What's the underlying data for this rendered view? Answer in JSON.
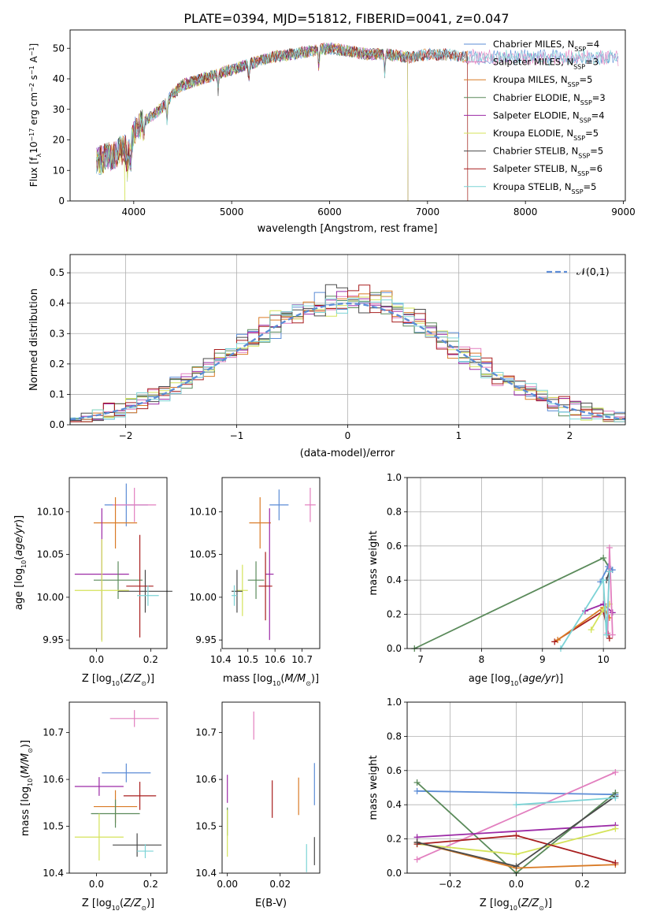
{
  "figure_title": "PLATE=0394, MJD=51812, FIBERID=0041, z=0.047",
  "colors": {
    "Chabrier MILES": "#5b8cd6",
    "Salpeter MILES": "#e27fbf",
    "Kroupa MILES": "#d97b26",
    "Chabrier ELODIE": "#5a8a5a",
    "Salpeter ELODIE": "#9c2aa6",
    "Kroupa ELODIE": "#d4e35a",
    "Chabrier STELIB": "#4a4a4a",
    "Salpeter STELIB": "#a81e1e",
    "Kroupa STELIB": "#7cd3d6"
  },
  "chart_data": [
    {
      "id": "spectrum",
      "type": "line",
      "xlabel": "wavelength [Angstrom, rest frame]",
      "ylabel": "Flux [f_λ 10^-17 erg cm^-2 s^-1 A^-1]",
      "xlim": [
        3350,
        9020
      ],
      "ylim": [
        0,
        56
      ],
      "xticks": [
        4000,
        5000,
        6000,
        7000,
        8000,
        9000
      ],
      "yticks": [
        0,
        10,
        20,
        30,
        40,
        50
      ],
      "grid": false,
      "legend": "top-right",
      "continuum": {
        "x": [
          3620,
          3700,
          3800,
          3900,
          3950,
          4000,
          4100,
          4200,
          4300,
          4400,
          4500,
          4600,
          4800,
          5000,
          5200,
          5400,
          5600,
          5800,
          6000,
          6200,
          6400,
          6600,
          6800,
          7000,
          7200,
          7400
        ],
        "y": [
          13,
          14,
          15,
          17,
          16,
          22,
          26,
          28,
          31,
          35,
          38,
          39,
          41,
          43,
          45,
          47,
          48,
          49,
          50,
          49,
          48,
          48,
          47,
          48,
          48,
          47
        ]
      },
      "series": [
        {
          "name": "Chabrier MILES",
          "nssp": "4",
          "end": 8950
        },
        {
          "name": "Salpeter MILES",
          "nssp": "3",
          "end": 8950
        },
        {
          "name": "Kroupa MILES",
          "nssp": "5",
          "end": 7410
        },
        {
          "name": "Chabrier ELODIE",
          "nssp": "3",
          "end": 6800
        },
        {
          "name": "Salpeter ELODIE",
          "nssp": "4",
          "end": 6800
        },
        {
          "name": "Kroupa ELODIE",
          "nssp": "5",
          "end": 6800
        },
        {
          "name": "Chabrier STELIB",
          "nssp": "5",
          "end": 7410
        },
        {
          "name": "Salpeter STELIB",
          "nssp": "6",
          "end": 7410
        },
        {
          "name": "Kroupa STELIB",
          "nssp": "5",
          "end": 8950
        }
      ]
    },
    {
      "id": "residuals",
      "type": "histogram",
      "xlabel": "(data-model)/error",
      "ylabel": "Normed distribution",
      "xlim": [
        -2.5,
        2.5
      ],
      "ylim": [
        0,
        0.56
      ],
      "xticks": [
        -2,
        -1,
        0,
        1,
        2
      ],
      "yticks": [
        0.0,
        0.1,
        0.2,
        0.3,
        0.4,
        0.5
      ],
      "grid": true,
      "legend": "top-right",
      "reference_label": "𝒩(0,1)",
      "bin_width": 0.1
    },
    {
      "id": "age-vs-Z",
      "type": "errorbar",
      "xlabel": "Z [log10(Z/Z⊙)]",
      "ylabel": "age [log10(age/yr)]",
      "xlim": [
        -0.1,
        0.26
      ],
      "ylim": [
        9.94,
        10.14
      ],
      "xticks": [
        0.0,
        0.2
      ],
      "yticks": [
        9.95,
        10.0,
        10.05,
        10.1
      ],
      "points": [
        {
          "series": "Chabrier MILES",
          "x": 0.11,
          "xerr": 0.08,
          "y": 10.108,
          "yerr": 0.025
        },
        {
          "series": "Salpeter MILES",
          "x": 0.14,
          "xerr": 0.08,
          "y": 10.108,
          "yerr": 0.02
        },
        {
          "series": "Kroupa MILES",
          "x": 0.07,
          "xerr": 0.08,
          "y": 10.087,
          "yerr": 0.03
        },
        {
          "series": "Salpeter ELODIE",
          "x": 0.02,
          "xerr": 0.1,
          "y": 10.027,
          "yerr": 0.077
        },
        {
          "series": "Chabrier ELODIE",
          "x": 0.08,
          "xerr": 0.09,
          "y": 10.02,
          "yerr": 0.022
        },
        {
          "series": "Kroupa ELODIE",
          "x": 0.02,
          "xerr": 0.1,
          "y": 10.008,
          "yerr": 0.06
        },
        {
          "series": "Chabrier STELIB",
          "x": 0.18,
          "xerr": 0.1,
          "y": 10.007,
          "yerr": 0.025
        },
        {
          "series": "Salpeter STELIB",
          "x": 0.16,
          "xerr": 0.05,
          "y": 10.013,
          "yerr": 0.06
        },
        {
          "series": "Kroupa STELIB",
          "x": 0.19,
          "xerr": 0.04,
          "y": 10.002,
          "yerr": 0.012
        }
      ]
    },
    {
      "id": "age-vs-mass",
      "type": "errorbar",
      "xlabel": "mass [log10(M/M⊙)]",
      "ylabel": "",
      "xlim": [
        10.405,
        10.765
      ],
      "ylim": [
        9.94,
        10.14
      ],
      "xticks": [
        10.4,
        10.5,
        10.6,
        10.7
      ],
      "yticks": [
        9.95,
        10.0,
        10.05,
        10.1
      ],
      "points": [
        {
          "series": "Chabrier MILES",
          "x": 10.615,
          "xerr": 0.035,
          "y": 10.108,
          "yerr": 0.018
        },
        {
          "series": "Salpeter MILES",
          "x": 10.73,
          "xerr": 0.02,
          "y": 10.108,
          "yerr": 0.02
        },
        {
          "series": "Kroupa MILES",
          "x": 10.545,
          "xerr": 0.04,
          "y": 10.087,
          "yerr": 0.03
        },
        {
          "series": "Salpeter ELODIE",
          "x": 10.58,
          "xerr": 0.015,
          "y": 10.027,
          "yerr": 0.077
        },
        {
          "series": "Chabrier ELODIE",
          "x": 10.53,
          "xerr": 0.03,
          "y": 10.02,
          "yerr": 0.022
        },
        {
          "series": "Kroupa ELODIE",
          "x": 10.48,
          "xerr": 0.02,
          "y": 10.008,
          "yerr": 0.03
        },
        {
          "series": "Chabrier STELIB",
          "x": 10.46,
          "xerr": 0.02,
          "y": 10.007,
          "yerr": 0.025
        },
        {
          "series": "Salpeter STELIB",
          "x": 10.565,
          "xerr": 0.025,
          "y": 10.013,
          "yerr": 0.04
        },
        {
          "series": "Kroupa STELIB",
          "x": 10.45,
          "xerr": 0.01,
          "y": 10.002,
          "yerr": 0.012
        }
      ]
    },
    {
      "id": "weight-vs-age",
      "type": "line",
      "xlabel": "age [log10(age/yr)]",
      "ylabel": "mass weight",
      "xlim": [
        6.78,
        10.36
      ],
      "ylim": [
        0.0,
        1.0
      ],
      "xticks": [
        7,
        8,
        9,
        10
      ],
      "yticks": [
        0.0,
        0.2,
        0.4,
        0.6,
        0.8,
        1.0
      ],
      "grid": true,
      "lines": [
        {
          "series": "Chabrier ELODIE",
          "x": [
            6.9,
            10.0,
            10.1
          ],
          "y": [
            0.0,
            0.53,
            0.47
          ]
        },
        {
          "series": "Salpeter STELIB",
          "x": [
            9.2,
            10.0,
            10.1
          ],
          "y": [
            0.04,
            0.22,
            0.06
          ]
        },
        {
          "series": "Kroupa MILES",
          "x": [
            9.25,
            10.0,
            10.1
          ],
          "y": [
            0.05,
            0.24,
            0.18
          ]
        },
        {
          "series": "Salpeter ELODIE",
          "x": [
            9.7,
            10.0,
            10.15
          ],
          "y": [
            0.22,
            0.26,
            0.21
          ]
        },
        {
          "series": "Kroupa ELODIE",
          "x": [
            9.8,
            10.0,
            10.1
          ],
          "y": [
            0.11,
            0.23,
            0.26
          ]
        },
        {
          "series": "Chabrier MILES",
          "x": [
            9.95,
            10.08,
            10.15
          ],
          "y": [
            0.39,
            0.48,
            0.46
          ]
        },
        {
          "series": "Salpeter MILES",
          "x": [
            10.07,
            10.1,
            10.15
          ],
          "y": [
            0.09,
            0.59,
            0.08
          ]
        },
        {
          "series": "Chabrier STELIB",
          "x": [
            10.05,
            10.1
          ],
          "y": [
            0.4,
            0.45
          ]
        },
        {
          "series": "Kroupa STELIB",
          "x": [
            9.3,
            10.0,
            10.05,
            10.1
          ],
          "y": [
            0.0,
            0.4,
            0.08,
            0.45
          ]
        }
      ]
    },
    {
      "id": "mass-vs-Z",
      "type": "errorbar",
      "xlabel": "Z [log10(Z/Z⊙)]",
      "ylabel": "mass [log10(M/M⊙)]",
      "xlim": [
        -0.1,
        0.26
      ],
      "ylim": [
        10.4,
        10.765
      ],
      "xticks": [
        0.0,
        0.2
      ],
      "yticks": [
        10.4,
        10.5,
        10.6,
        10.7
      ],
      "points": [
        {
          "series": "Salpeter MILES",
          "x": 0.14,
          "xerr": 0.09,
          "y": 10.73,
          "yerr": 0.018
        },
        {
          "series": "Chabrier MILES",
          "x": 0.11,
          "xerr": 0.09,
          "y": 10.614,
          "yerr": 0.02
        },
        {
          "series": "Salpeter ELODIE",
          "x": 0.01,
          "xerr": 0.09,
          "y": 10.585,
          "yerr": 0.02
        },
        {
          "series": "Kroupa MILES",
          "x": 0.07,
          "xerr": 0.08,
          "y": 10.542,
          "yerr": 0.035
        },
        {
          "series": "Salpeter STELIB",
          "x": 0.16,
          "xerr": 0.06,
          "y": 10.565,
          "yerr": 0.03
        },
        {
          "series": "Chabrier ELODIE",
          "x": 0.07,
          "xerr": 0.09,
          "y": 10.527,
          "yerr": 0.03
        },
        {
          "series": "Kroupa ELODIE",
          "x": 0.01,
          "xerr": 0.09,
          "y": 10.477,
          "yerr": 0.05
        },
        {
          "series": "Chabrier STELIB",
          "x": 0.15,
          "xerr": 0.09,
          "y": 10.46,
          "yerr": 0.025
        },
        {
          "series": "Kroupa STELIB",
          "x": 0.18,
          "xerr": 0.03,
          "y": 10.447,
          "yerr": 0.015
        }
      ]
    },
    {
      "id": "mass-vs-EBV",
      "type": "errorbar",
      "xlabel": "E(B-V)",
      "ylabel": "",
      "xlim": [
        -0.002,
        0.035
      ],
      "ylim": [
        10.4,
        10.765
      ],
      "xticks": [
        0.0,
        0.02
      ],
      "yticks": [
        10.4,
        10.5,
        10.6,
        10.7
      ],
      "points": [
        {
          "series": "Salpeter MILES",
          "x": 0.01,
          "xerr": 0,
          "y": 10.715,
          "yerr": 0.03
        },
        {
          "series": "Chabrier MILES",
          "x": 0.033,
          "xerr": 0,
          "y": 10.59,
          "yerr": 0.045
        },
        {
          "series": "Salpeter ELODIE",
          "x": 0.0,
          "xerr": 0,
          "y": 10.58,
          "yerr": 0.03
        },
        {
          "series": "Kroupa MILES",
          "x": 0.027,
          "xerr": 0,
          "y": 10.564,
          "yerr": 0.04
        },
        {
          "series": "Salpeter STELIB",
          "x": 0.017,
          "xerr": 0,
          "y": 10.558,
          "yerr": 0.04
        },
        {
          "series": "Chabrier ELODIE",
          "x": 0.0,
          "xerr": 0,
          "y": 10.51,
          "yerr": 0.03
        },
        {
          "series": "Kroupa ELODIE",
          "x": 0.0,
          "xerr": 0,
          "y": 10.485,
          "yerr": 0.05
        },
        {
          "series": "Chabrier STELIB",
          "x": 0.033,
          "xerr": 0,
          "y": 10.447,
          "yerr": 0.03
        },
        {
          "series": "Kroupa STELIB",
          "x": 0.03,
          "xerr": 0,
          "y": 10.432,
          "yerr": 0.03
        }
      ]
    },
    {
      "id": "weight-vs-Z",
      "type": "line",
      "xlabel": "Z [log10(Z/Z⊙)]",
      "ylabel": "mass weight",
      "xlim": [
        -0.33,
        0.33
      ],
      "ylim": [
        0.0,
        1.0
      ],
      "xticks": [
        -0.2,
        0.0,
        0.2
      ],
      "yticks": [
        0.0,
        0.2,
        0.4,
        0.6,
        0.8,
        1.0
      ],
      "grid": true,
      "lines": [
        {
          "series": "Chabrier MILES",
          "x": [
            -0.3,
            0.3
          ],
          "y": [
            0.48,
            0.46
          ]
        },
        {
          "series": "Salpeter MILES",
          "x": [
            -0.3,
            0.3
          ],
          "y": [
            0.08,
            0.59
          ]
        },
        {
          "series": "Chabrier ELODIE",
          "x": [
            -0.3,
            0.0,
            0.3
          ],
          "y": [
            0.53,
            0.0,
            0.47
          ]
        },
        {
          "series": "Salpeter ELODIE",
          "x": [
            -0.3,
            0.3
          ],
          "y": [
            0.21,
            0.28
          ]
        },
        {
          "series": "Kroupa ELODIE",
          "x": [
            -0.3,
            0.0,
            0.3
          ],
          "y": [
            0.17,
            0.11,
            0.26
          ]
        },
        {
          "series": "Kroupa MILES",
          "x": [
            -0.3,
            0.0,
            0.3
          ],
          "y": [
            0.18,
            0.03,
            0.05
          ]
        },
        {
          "series": "Salpeter STELIB",
          "x": [
            -0.3,
            0.0,
            0.3
          ],
          "y": [
            0.17,
            0.22,
            0.06
          ]
        },
        {
          "series": "Chabrier STELIB",
          "x": [
            -0.3,
            0.0,
            0.3
          ],
          "y": [
            0.18,
            0.04,
            0.45
          ]
        },
        {
          "series": "Kroupa STELIB",
          "x": [
            0.0,
            0.3
          ],
          "y": [
            0.4,
            0.44
          ]
        }
      ]
    }
  ]
}
